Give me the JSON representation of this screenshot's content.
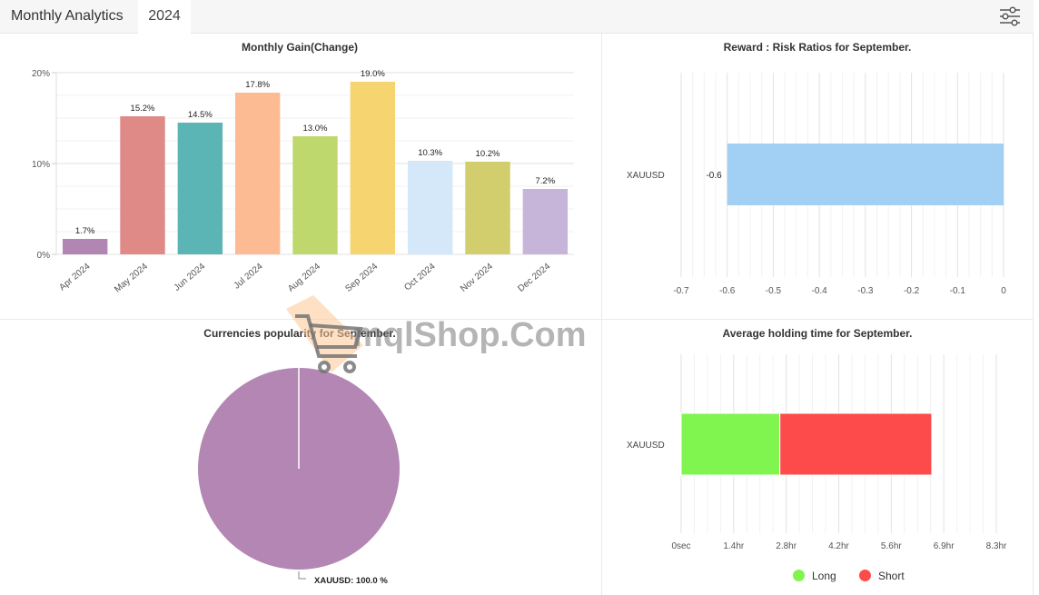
{
  "header": {
    "title": "Monthly Analytics",
    "year_tab": "2024",
    "filter_icon": "sliders-icon"
  },
  "watermark": {
    "text": "mqlShop.Com",
    "icon": "shopping-cart-icon"
  },
  "chart_data": [
    {
      "type": "bar",
      "title": "Monthly Gain(Change)",
      "categories": [
        "Apr 2024",
        "May 2024",
        "Jun 2024",
        "Jul 2024",
        "Aug 2024",
        "Sep 2024",
        "Oct 2024",
        "Nov 2024",
        "Dec 2024"
      ],
      "values": [
        1.7,
        15.2,
        14.5,
        17.8,
        13.0,
        19.0,
        10.3,
        10.2,
        7.2
      ],
      "labels": [
        "1.7%",
        "15.2%",
        "14.5%",
        "17.8%",
        "13.0%",
        "19.0%",
        "10.3%",
        "10.2%",
        "7.2%"
      ],
      "colors": [
        "#b186b3",
        "#e08a88",
        "#5bb5b5",
        "#fdbb93",
        "#bed86e",
        "#f6d470",
        "#d4e8f9",
        "#d2cd6d",
        "#c6b5d9"
      ],
      "yticks": [
        "0%",
        "10%",
        "20%"
      ],
      "ylim": [
        0,
        20
      ],
      "grid": true
    },
    {
      "type": "bar",
      "orientation": "horizontal",
      "title": "Reward : Risk Ratios for September.",
      "categories": [
        "XAUUSD"
      ],
      "values": [
        -0.6
      ],
      "labels": [
        "-0.6"
      ],
      "color": "#a2d0f5",
      "xticks": [
        "-0.7",
        "-0.6",
        "-0.5",
        "-0.4",
        "-0.3",
        "-0.2",
        "-0.1",
        "0"
      ],
      "xlim": [
        -0.7,
        0
      ],
      "grid": true
    },
    {
      "type": "pie",
      "title": "Currencies popularity for September.",
      "slices": [
        {
          "label": "XAUUSD: 100.0 %",
          "value": 100.0,
          "color": "#b386b3"
        }
      ]
    },
    {
      "type": "bar",
      "orientation": "horizontal",
      "stacked": true,
      "title": "Average holding time for September.",
      "categories": [
        "XAUUSD"
      ],
      "series": [
        {
          "name": "Long",
          "values": [
            2.6
          ],
          "color": "#80f44f"
        },
        {
          "name": "Short",
          "values": [
            4.0
          ],
          "color": "#fd4b4b"
        }
      ],
      "xticks": [
        "0sec",
        "1.4hr",
        "2.8hr",
        "4.2hr",
        "5.6hr",
        "6.9hr",
        "8.3hr"
      ],
      "xlim": [
        0,
        8.3
      ],
      "unit": "hr",
      "legend_position": "bottom",
      "grid": true
    }
  ]
}
